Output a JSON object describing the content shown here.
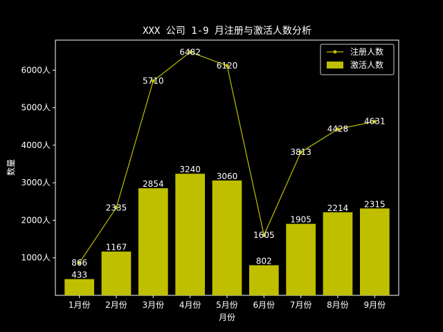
{
  "chart_data": {
    "type": "bar+line",
    "title": "XXX 公司 1-9 月注册与激活人数分析",
    "xlabel": "月份",
    "ylabel": "数量",
    "categories": [
      "1月份",
      "2月份",
      "3月份",
      "4月份",
      "5月份",
      "6月份",
      "7月份",
      "8月份",
      "9月份"
    ],
    "series": [
      {
        "name": "注册人数",
        "type": "line",
        "color": "#bfbf00",
        "values": [
          866,
          2335,
          5710,
          6482,
          6120,
          1605,
          3813,
          4428,
          4631
        ]
      },
      {
        "name": "激活人数",
        "type": "bar",
        "color": "#bfbf00",
        "values": [
          433,
          1167,
          2854,
          3240,
          3060,
          802,
          1905,
          2214,
          2315
        ]
      }
    ],
    "ylim": [
      0,
      6800
    ],
    "yticks": [
      1000,
      2000,
      3000,
      4000,
      5000,
      6000
    ],
    "ytick_labels": [
      "1000人",
      "2000人",
      "3000人",
      "4000人",
      "5000人",
      "6000人"
    ],
    "legend_position": "top-right",
    "grid": false
  }
}
